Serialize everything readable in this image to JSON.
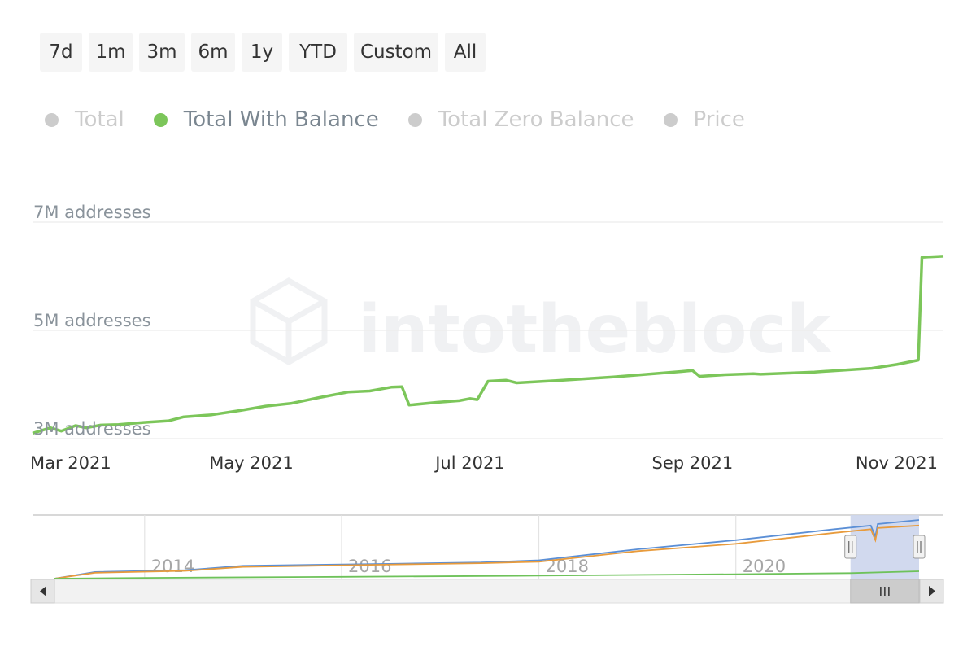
{
  "range_selector": {
    "buttons": [
      "7d",
      "1m",
      "3m",
      "6m",
      "1y",
      "YTD",
      "Custom",
      "All"
    ]
  },
  "legend": {
    "items": [
      {
        "label": "Total",
        "color": "#cccccc",
        "active": false
      },
      {
        "label": "Total With Balance",
        "color": "#7cc65a",
        "active": true
      },
      {
        "label": "Total Zero Balance",
        "color": "#cccccc",
        "active": false
      },
      {
        "label": "Price",
        "color": "#cccccc",
        "active": false
      }
    ],
    "active_text_color": "#7a8690",
    "inactive_text_color": "#cccccc"
  },
  "watermark": "intotheblock",
  "chart_data": {
    "type": "line",
    "series": [
      {
        "name": "Total With Balance",
        "color": "#7cc65a",
        "points": [
          [
            "2021-03-01",
            3.1
          ],
          [
            "2021-03-06",
            3.2
          ],
          [
            "2021-03-09",
            3.14
          ],
          [
            "2021-03-13",
            3.24
          ],
          [
            "2021-03-16",
            3.2
          ],
          [
            "2021-03-20",
            3.25
          ],
          [
            "2021-03-25",
            3.26
          ],
          [
            "2021-04-01",
            3.3
          ],
          [
            "2021-04-08",
            3.33
          ],
          [
            "2021-04-12",
            3.4
          ],
          [
            "2021-04-20",
            3.44
          ],
          [
            "2021-04-28",
            3.52
          ],
          [
            "2021-05-05",
            3.6
          ],
          [
            "2021-05-12",
            3.65
          ],
          [
            "2021-05-20",
            3.76
          ],
          [
            "2021-05-28",
            3.86
          ],
          [
            "2021-06-03",
            3.88
          ],
          [
            "2021-06-09",
            3.95
          ],
          [
            "2021-06-12",
            3.96
          ],
          [
            "2021-06-14",
            3.62
          ],
          [
            "2021-06-22",
            3.67
          ],
          [
            "2021-06-28",
            3.7
          ],
          [
            "2021-07-01",
            3.74
          ],
          [
            "2021-07-03",
            3.72
          ],
          [
            "2021-07-06",
            4.06
          ],
          [
            "2021-07-11",
            4.08
          ],
          [
            "2021-07-14",
            4.03
          ],
          [
            "2021-07-25",
            4.07
          ],
          [
            "2021-08-10",
            4.14
          ],
          [
            "2021-08-29",
            4.24
          ],
          [
            "2021-09-01",
            4.26
          ],
          [
            "2021-09-03",
            4.15
          ],
          [
            "2021-09-10",
            4.18
          ],
          [
            "2021-09-18",
            4.2
          ],
          [
            "2021-09-20",
            4.19
          ],
          [
            "2021-10-05",
            4.23
          ],
          [
            "2021-10-21",
            4.3
          ],
          [
            "2021-10-28",
            4.37
          ],
          [
            "2021-11-03",
            4.45
          ],
          [
            "2021-11-04",
            6.35
          ],
          [
            "2021-11-10",
            6.37
          ]
        ]
      }
    ],
    "x_range": [
      "2021-03-01",
      "2021-11-10"
    ],
    "x_ticks": [
      {
        "date": "2021-03-01",
        "label": "Mar 2021"
      },
      {
        "date": "2021-05-01",
        "label": "May 2021"
      },
      {
        "date": "2021-07-01",
        "label": "Jul 2021"
      },
      {
        "date": "2021-09-01",
        "label": "Sep 2021"
      },
      {
        "date": "2021-11-01",
        "label": "Nov 2021"
      }
    ],
    "y_unit": "millions of addresses",
    "y_range": [
      3,
      7
    ],
    "y_ticks": [
      {
        "value": 7,
        "label": "7M addresses"
      },
      {
        "value": 5,
        "label": "5M addresses"
      },
      {
        "value": 3,
        "label": "3M addresses"
      }
    ],
    "grid": true,
    "navigator": {
      "x_range": [
        "2013-02-01",
        "2021-11-10"
      ],
      "year_ticks": [
        {
          "date": "2014-01-01",
          "label": "2014"
        },
        {
          "date": "2016-01-01",
          "label": "2016"
        },
        {
          "date": "2018-01-01",
          "label": "2018"
        },
        {
          "date": "2020-01-01",
          "label": "2020"
        }
      ],
      "selected_range": [
        "2021-03-01",
        "2021-11-10"
      ],
      "series": [
        {
          "name": "Total",
          "color": "#5b8fd6",
          "points": [
            [
              "2013-02-01",
              0
            ],
            [
              "2013-07-01",
              1.8
            ],
            [
              "2014-06-01",
              2.3
            ],
            [
              "2015-01-01",
              3.5
            ],
            [
              "2016-06-01",
              4.0
            ],
            [
              "2017-06-01",
              4.4
            ],
            [
              "2018-01-01",
              5.0
            ],
            [
              "2019-01-01",
              8.0
            ],
            [
              "2020-01-01",
              10.5
            ],
            [
              "2021-01-01",
              13.5
            ],
            [
              "2021-05-15",
              14.5
            ],
            [
              "2021-06-01",
              11.5
            ],
            [
              "2021-06-10",
              14.9
            ],
            [
              "2021-11-10",
              16.0
            ]
          ]
        },
        {
          "name": "Total Zero Balance",
          "color": "#e89b3c",
          "points": [
            [
              "2013-02-01",
              0
            ],
            [
              "2013-07-01",
              1.6
            ],
            [
              "2014-06-01",
              2.1
            ],
            [
              "2015-01-01",
              3.2
            ],
            [
              "2016-06-01",
              3.8
            ],
            [
              "2017-06-01",
              4.2
            ],
            [
              "2018-01-01",
              4.6
            ],
            [
              "2019-01-01",
              7.5
            ],
            [
              "2020-01-01",
              9.5
            ],
            [
              "2021-01-01",
              12.5
            ],
            [
              "2021-05-15",
              13.5
            ],
            [
              "2021-06-01",
              10.5
            ],
            [
              "2021-06-10",
              13.8
            ],
            [
              "2021-11-10",
              14.5
            ]
          ]
        },
        {
          "name": "Total With Balance",
          "color": "#6ec25a",
          "points": [
            [
              "2013-02-01",
              0
            ],
            [
              "2014-01-01",
              0.2
            ],
            [
              "2016-01-01",
              0.5
            ],
            [
              "2018-01-01",
              0.8
            ],
            [
              "2020-01-01",
              1.2
            ],
            [
              "2021-03-01",
              1.5
            ],
            [
              "2021-11-10",
              2.0
            ]
          ]
        }
      ]
    }
  }
}
